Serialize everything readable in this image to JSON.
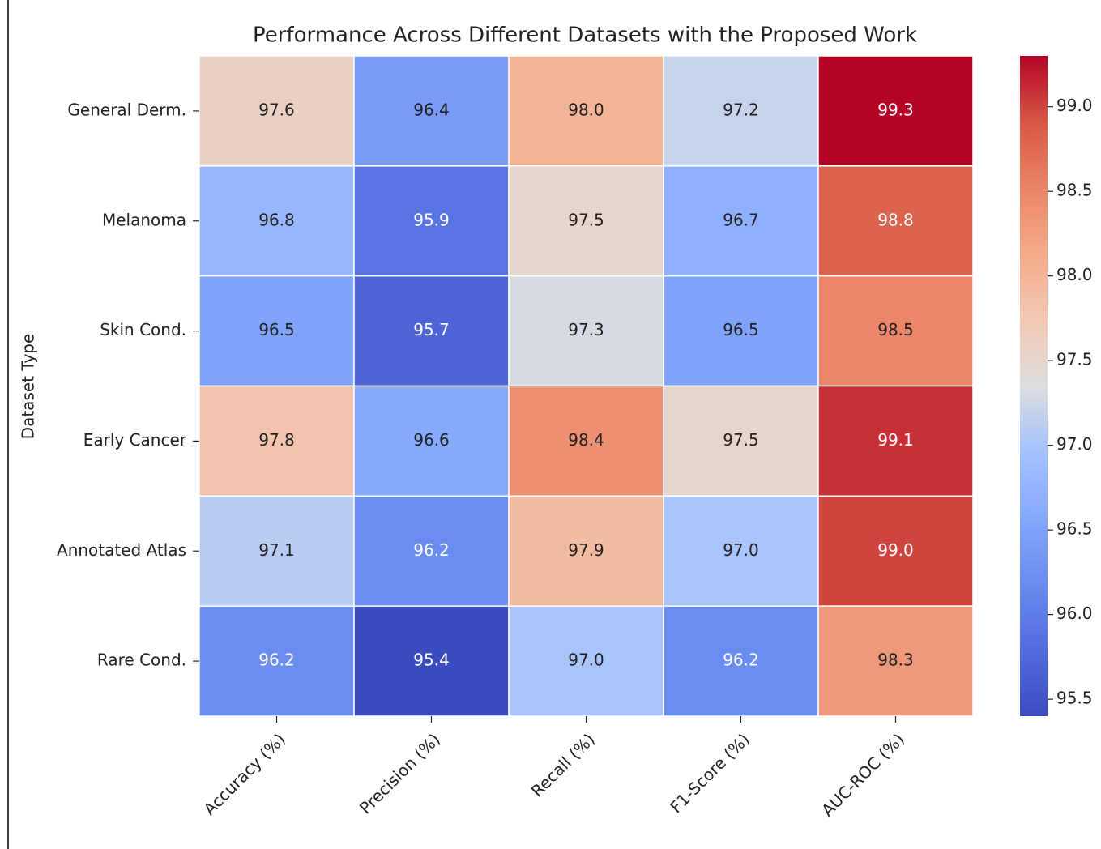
{
  "chart_data": {
    "type": "heatmap",
    "title": "Performance Across Different Datasets with the Proposed Work",
    "ylabel": "Dataset Type",
    "x": [
      "Accuracy (%)",
      "Precision (%)",
      "Recall (%)",
      "F1-Score (%)",
      "AUC-ROC (%)"
    ],
    "y": [
      "General Derm.",
      "Melanoma",
      "Skin Cond.",
      "Early Cancer",
      "Annotated Atlas",
      "Rare Cond."
    ],
    "values": [
      [
        97.6,
        96.4,
        98.0,
        97.2,
        99.3
      ],
      [
        96.8,
        95.9,
        97.5,
        96.7,
        98.8
      ],
      [
        96.5,
        95.7,
        97.3,
        96.5,
        98.5
      ],
      [
        97.8,
        96.6,
        98.4,
        97.5,
        99.1
      ],
      [
        97.1,
        96.2,
        97.9,
        97.0,
        99.0
      ],
      [
        96.2,
        95.4,
        97.0,
        96.2,
        98.3
      ]
    ],
    "value_labels": [
      [
        "97.6",
        "96.4",
        "98.0",
        "97.2",
        "99.3"
      ],
      [
        "96.8",
        "95.9",
        "97.5",
        "96.7",
        "98.8"
      ],
      [
        "96.5",
        "95.7",
        "97.3",
        "96.5",
        "98.5"
      ],
      [
        "97.8",
        "96.6",
        "98.4",
        "97.5",
        "99.1"
      ],
      [
        "97.1",
        "96.2",
        "97.9",
        "97.0",
        "99.0"
      ],
      [
        "96.2",
        "95.4",
        "97.0",
        "96.2",
        "98.3"
      ]
    ],
    "colormap": "coolwarm",
    "clim": [
      95.4,
      99.3
    ],
    "cticks": [
      95.5,
      {
        "value": 96,
        "label": "96.0"
      },
      96.5,
      {
        "value": 97,
        "label": "97.0"
      },
      97.5,
      {
        "value": 98,
        "label": "98.0"
      },
      98.5,
      {
        "value": 99,
        "label": "99.0"
      }
    ]
  }
}
